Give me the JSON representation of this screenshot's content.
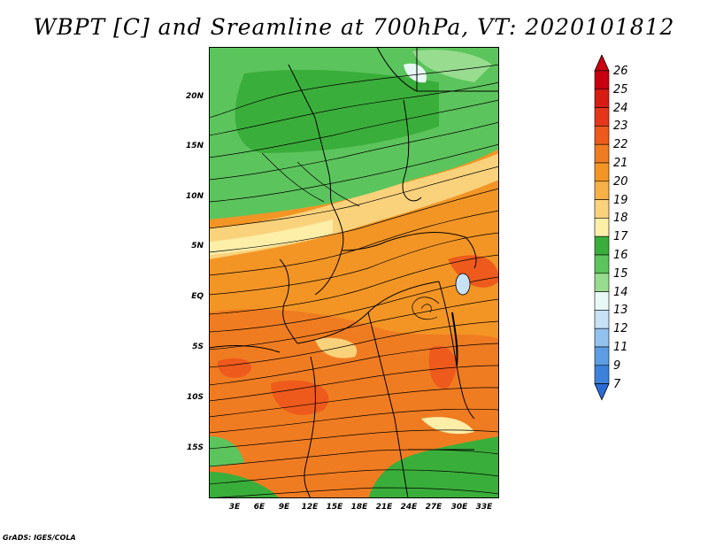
{
  "title": "WBPT [C] and Sreamline at 700hPa, VT: 2020101812",
  "lat_labels": [
    "20N",
    "15N",
    "10N",
    "5N",
    "EQ",
    "5S",
    "10S",
    "15S"
  ],
  "lon_labels": [
    "3E",
    "6E",
    "9E",
    "12E",
    "15E",
    "18E",
    "21E",
    "24E",
    "27E",
    "30E",
    "33E"
  ],
  "colorbar": {
    "labels": [
      "26",
      "25",
      "24",
      "23",
      "22",
      "21",
      "20",
      "19",
      "18",
      "17",
      "16",
      "15",
      "14",
      "13",
      "12",
      "11",
      "9",
      "7"
    ],
    "colors": [
      "#c8000f",
      "#d81c14",
      "#e5351a",
      "#ee5a1c",
      "#f07c21",
      "#f39524",
      "#f7b147",
      "#fad27b",
      "#fdeea8",
      "#3aae3a",
      "#5cc45c",
      "#97dc8f",
      "#e8f8f4",
      "#c7e1f7",
      "#93c2ee",
      "#5c9de3",
      "#3c82dc",
      "#2a6bd6"
    ]
  },
  "footer": "GrADS: IGES/COLA"
}
